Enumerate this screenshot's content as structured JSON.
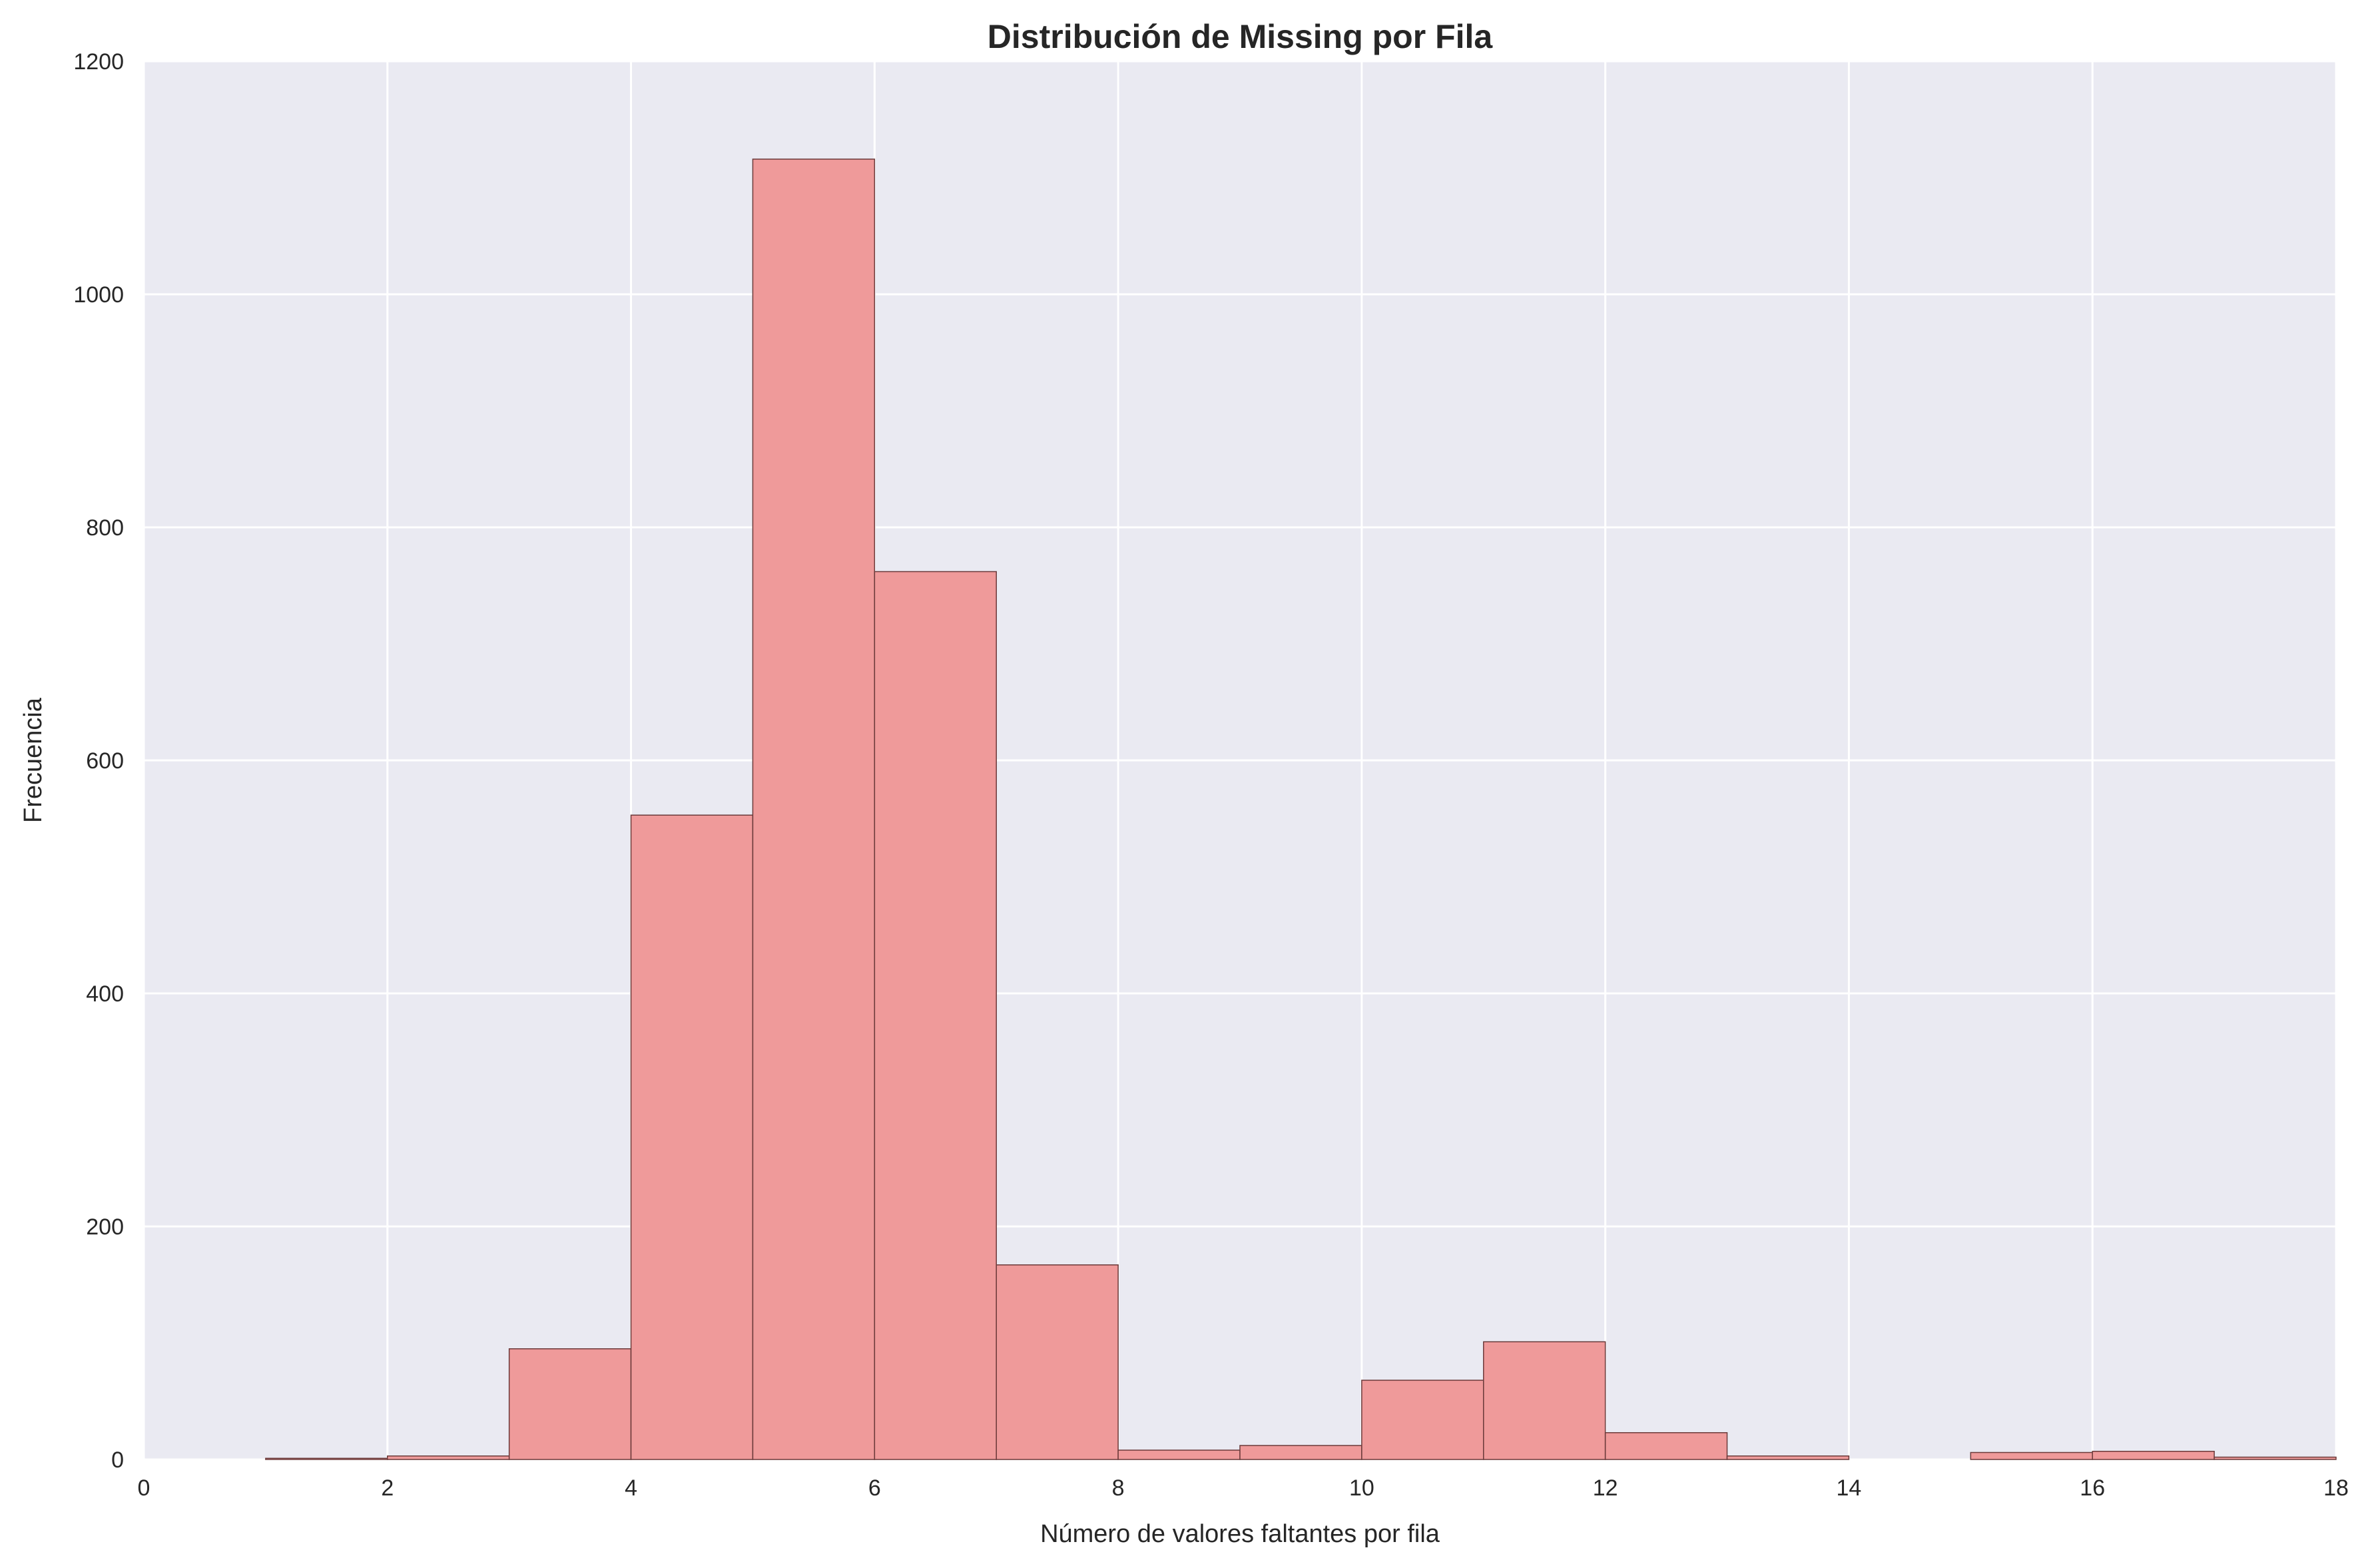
{
  "chart_data": {
    "type": "bar",
    "title": "Distribución de Missing por Fila",
    "xlabel": "Número de valores faltantes por fila",
    "ylabel": "Frecuencia",
    "xlim": [
      0,
      18
    ],
    "ylim": [
      0,
      1200
    ],
    "xticks": [
      "0",
      "2",
      "4",
      "6",
      "8",
      "10",
      "12",
      "14",
      "16",
      "18"
    ],
    "yticks": [
      "0",
      "200",
      "400",
      "600",
      "800",
      "1000",
      "1200"
    ],
    "grid": true,
    "bins": [
      {
        "x0": 1,
        "x1": 2,
        "count": 1
      },
      {
        "x0": 2,
        "x1": 3,
        "count": 3
      },
      {
        "x0": 3,
        "x1": 4,
        "count": 95
      },
      {
        "x0": 4,
        "x1": 5,
        "count": 553
      },
      {
        "x0": 5,
        "x1": 6,
        "count": 1116
      },
      {
        "x0": 6,
        "x1": 7,
        "count": 762
      },
      {
        "x0": 7,
        "x1": 8,
        "count": 167
      },
      {
        "x0": 8,
        "x1": 9,
        "count": 8
      },
      {
        "x0": 9,
        "x1": 10,
        "count": 12
      },
      {
        "x0": 10,
        "x1": 11,
        "count": 68
      },
      {
        "x0": 11,
        "x1": 12,
        "count": 101
      },
      {
        "x0": 12,
        "x1": 13,
        "count": 23
      },
      {
        "x0": 13,
        "x1": 14,
        "count": 3
      },
      {
        "x0": 14,
        "x1": 15,
        "count": 0
      },
      {
        "x0": 15,
        "x1": 16,
        "count": 6
      },
      {
        "x0": 16,
        "x1": 17,
        "count": 7
      },
      {
        "x0": 17,
        "x1": 18,
        "count": 2
      }
    ],
    "colors": {
      "plot_background": "#eaeaf2",
      "grid": "#ffffff",
      "bar_fill": "#ef9a9a",
      "bar_edge": "#6b3a3a"
    }
  }
}
